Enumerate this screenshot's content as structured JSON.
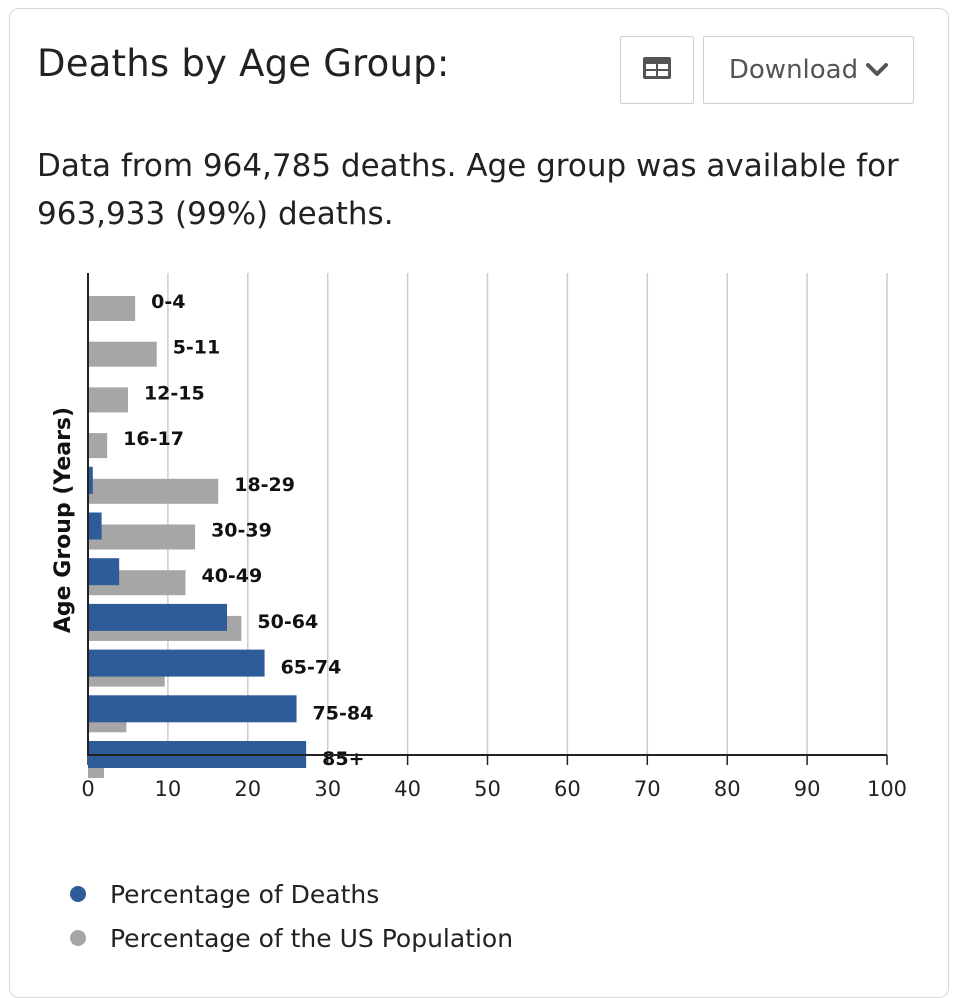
{
  "header": {
    "title": "Deaths by Age Group:",
    "download_label": "Download",
    "table_icon": "table-icon",
    "chevron_icon": "chevron-down-icon"
  },
  "subtitle": "Data from 964,785 deaths. Age group was available for 963,933 (99%) deaths.",
  "colors": {
    "deaths": "#2e5c99",
    "population": "#a6a6a6",
    "grid": "#cccccc",
    "axis": "#222222"
  },
  "legend": [
    {
      "label": "Percentage of Deaths",
      "color": "#2e5c99"
    },
    {
      "label": "Percentage of the US Population",
      "color": "#a6a6a6"
    }
  ],
  "chart_data": {
    "type": "bar",
    "orientation": "horizontal",
    "ylabel": "Age Group (Years)",
    "xlabel": "",
    "xlim": [
      0,
      100
    ],
    "xticks": [
      0,
      10,
      20,
      30,
      40,
      50,
      60,
      70,
      80,
      90,
      100
    ],
    "grid": true,
    "legend_position": "bottom-left",
    "categories": [
      "0-4",
      "5-11",
      "12-15",
      "16-17",
      "18-29",
      "30-39",
      "40-49",
      "50-64",
      "65-74",
      "75-84",
      "85+"
    ],
    "series": [
      {
        "name": "Percentage of Deaths",
        "values": [
          0.0,
          0.0,
          0.0,
          0.0,
          0.6,
          1.7,
          3.9,
          17.4,
          22.1,
          26.1,
          27.3
        ]
      },
      {
        "name": "Percentage of the US Population",
        "values": [
          5.9,
          8.6,
          5.0,
          2.4,
          16.3,
          13.4,
          12.2,
          19.2,
          9.6,
          4.8,
          2.0
        ]
      }
    ]
  }
}
